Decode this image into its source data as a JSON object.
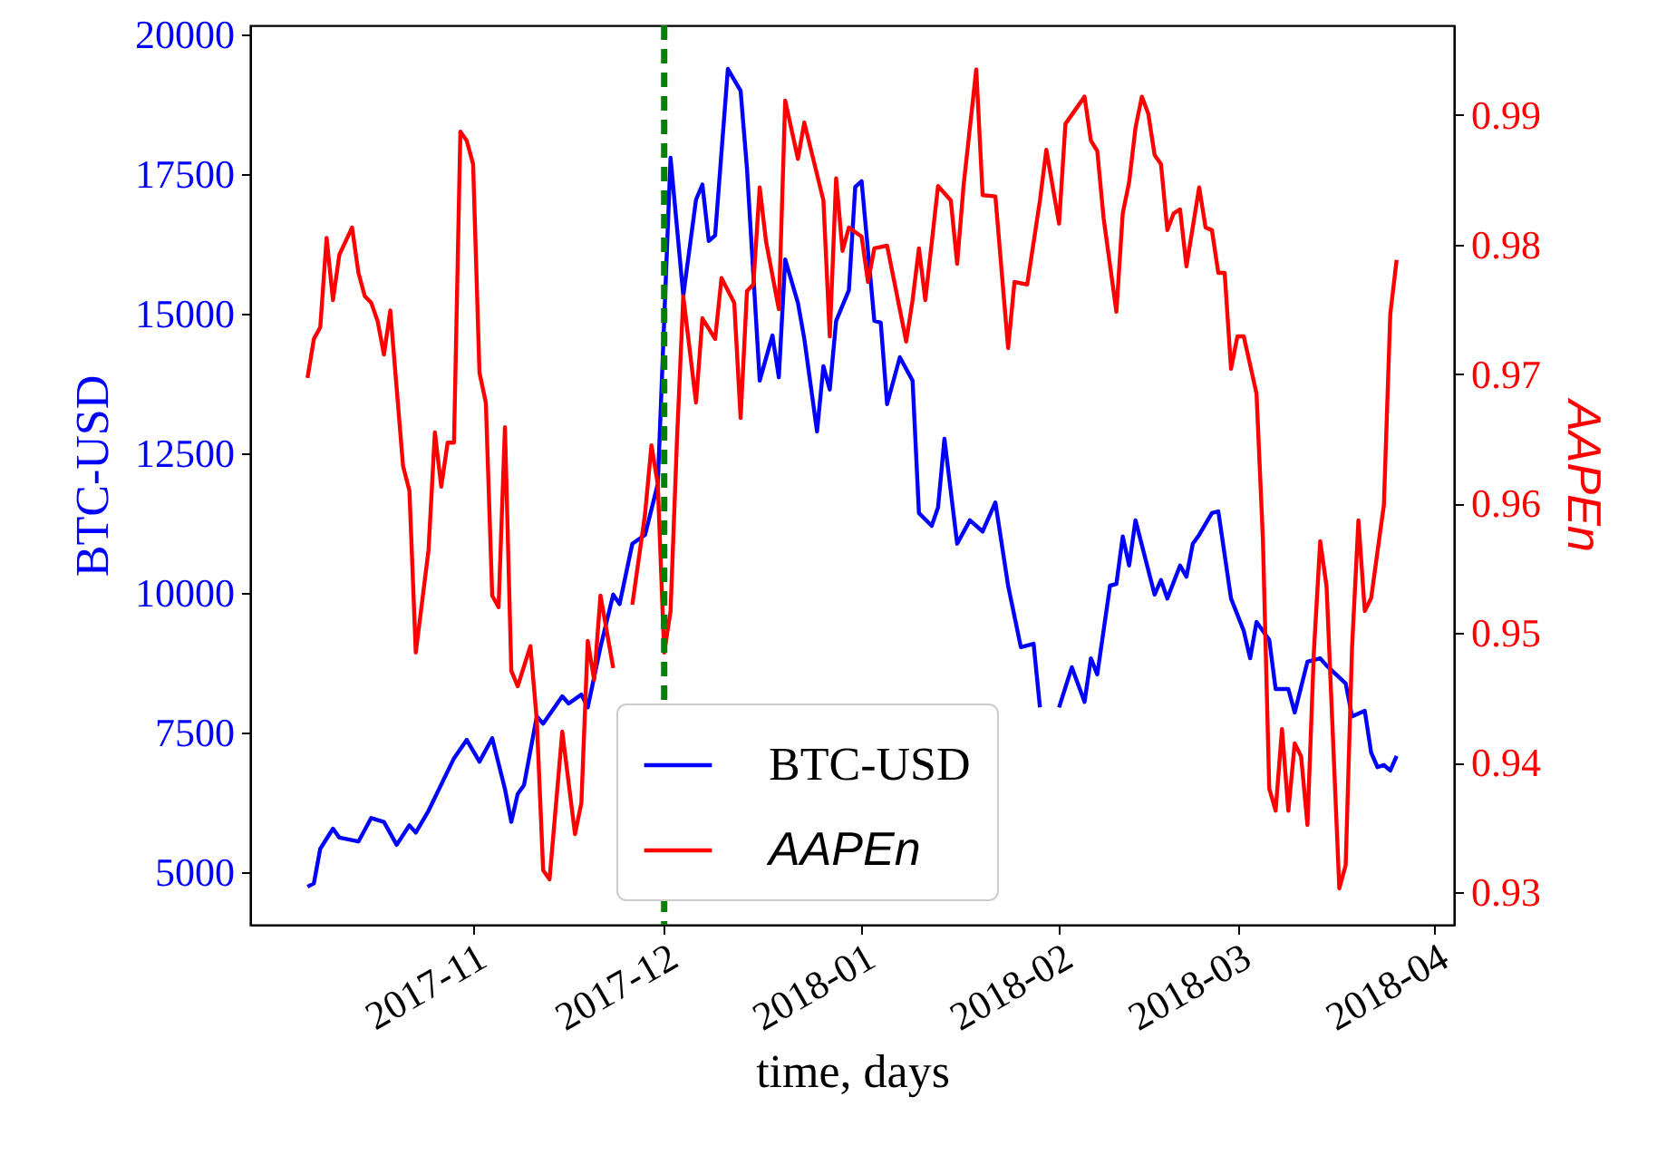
{
  "chart_data": {
    "type": "line",
    "xlabel": "time, days",
    "ylabel": "BTC-USD",
    "y2label": "AAPEn",
    "xlim": [
      "2017-09-27",
      "2018-04-04"
    ],
    "xticks": [
      {
        "value": "2017-11-01",
        "label": "2017-11"
      },
      {
        "value": "2017-12-01",
        "label": "2017-12"
      },
      {
        "value": "2018-01-01",
        "label": "2018-01"
      },
      {
        "value": "2018-02-01",
        "label": "2018-02"
      },
      {
        "value": "2018-03-01",
        "label": "2018-03"
      },
      {
        "value": "2018-04-01",
        "label": "2018-04"
      }
    ],
    "ylim": [
      4060,
      20160
    ],
    "yticks": [
      5000,
      7500,
      10000,
      12500,
      15000,
      17500,
      20000
    ],
    "y2lim": [
      0.9275,
      0.9969
    ],
    "y2ticks": [
      0.93,
      0.94,
      0.95,
      0.96,
      0.97,
      0.98,
      0.99
    ],
    "legend": "bottom",
    "ref_lines": [
      {
        "axis": "x",
        "value": "2017-12-01",
        "color": "#008000",
        "line_style": "dashed"
      }
    ],
    "series": [
      {
        "name": "BTC-USD",
        "color": "#0000ff",
        "x": [
          "2017-10-06",
          "2017-10-07",
          "2017-10-08",
          "2017-10-10",
          "2017-10-11",
          "2017-10-14",
          "2017-10-16",
          "2017-10-18",
          "2017-10-20",
          "2017-10-22",
          "2017-10-23",
          "2017-10-25",
          "2017-10-29",
          "2017-10-31",
          "2017-11-02",
          "2017-11-04",
          "2017-11-06",
          "2017-11-07",
          "2017-11-08",
          "2017-11-09",
          "2017-11-11",
          "2017-11-12",
          "2017-11-15",
          "2017-11-16",
          "2017-11-18",
          "2017-11-19",
          "2017-11-21",
          "2017-11-23",
          "2017-11-24",
          "2017-11-26",
          "2017-11-28",
          "2017-11-30",
          "2017-12-02",
          "2017-12-04",
          "2017-12-06",
          "2017-12-07",
          "2017-12-08",
          "2017-12-09",
          "2017-12-11",
          "2017-12-13",
          "2017-12-14",
          "2017-12-16",
          "2017-12-18",
          "2017-12-19",
          "2017-12-20",
          "2017-12-22",
          "2017-12-23",
          "2017-12-25",
          "2017-12-26",
          "2017-12-27",
          "2017-12-28",
          "2017-12-30",
          "2017-12-31",
          "2018-01-01",
          "2018-01-03",
          "2018-01-04",
          "2018-01-05",
          "2018-01-07",
          "2018-01-09",
          "2018-01-10",
          "2018-01-12",
          "2018-01-13",
          "2018-01-14",
          "2018-01-16",
          "2018-01-18",
          "2018-01-20",
          "2018-01-22",
          "2018-01-24",
          "2018-01-26",
          "2018-01-28",
          "2018-01-29",
          "2018-01-31",
          "2018-02-01",
          "2018-02-03",
          "2018-02-05",
          "2018-02-06",
          "2018-02-07",
          "2018-02-09",
          "2018-02-10",
          "2018-02-11",
          "2018-02-12",
          "2018-02-13",
          "2018-02-16",
          "2018-02-17",
          "2018-02-18",
          "2018-02-20",
          "2018-02-21",
          "2018-02-22",
          "2018-02-23",
          "2018-02-25",
          "2018-02-26",
          "2018-02-28",
          "2018-03-02",
          "2018-03-03",
          "2018-03-04",
          "2018-03-06",
          "2018-03-07",
          "2018-03-09",
          "2018-03-10",
          "2018-03-12",
          "2018-03-14",
          "2018-03-15",
          "2018-03-18",
          "2018-03-19",
          "2018-03-21",
          "2018-03-22",
          "2018-03-23",
          "2018-03-24",
          "2018-03-25",
          "2018-03-26"
        ],
        "values": [
          4740,
          4800,
          5420,
          5780,
          5620,
          5550,
          5970,
          5900,
          5490,
          5840,
          5710,
          6100,
          7040,
          7370,
          6980,
          7400,
          6490,
          5900,
          6400,
          6560,
          7790,
          7660,
          8150,
          8020,
          8180,
          7950,
          9030,
          9970,
          9800,
          10880,
          11040,
          11950,
          17790,
          15320,
          17040,
          17310,
          16300,
          16400,
          19380,
          18990,
          17600,
          13800,
          14610,
          13860,
          15970,
          15190,
          14550,
          12890,
          14060,
          13640,
          14870,
          15420,
          17270,
          17370,
          14870,
          14840,
          13380,
          14220,
          13800,
          11430,
          11200,
          11530,
          12760,
          10880,
          11300,
          11100,
          11620,
          10130,
          9030,
          9090,
          7950,
          null,
          7950,
          8670,
          8050,
          8830,
          8540,
          10130,
          10160,
          11010,
          10490,
          11300,
          9970,
          10230,
          9900,
          10490,
          10290,
          10880,
          11040,
          11430,
          11460,
          9900,
          9320,
          8830,
          9480,
          9160,
          8280,
          8280,
          7860,
          8770,
          8830,
          8700,
          8380,
          7790,
          7890,
          7140,
          6880,
          6920,
          6820,
          7080
        ]
      },
      {
        "name": "AAPEn",
        "color": "#ff0000",
        "axis": "y2",
        "x": [
          "2017-10-06",
          "2017-10-07",
          "2017-10-08",
          "2017-10-09",
          "2017-10-10",
          "2017-10-11",
          "2017-10-13",
          "2017-10-14",
          "2017-10-15",
          "2017-10-16",
          "2017-10-17",
          "2017-10-18",
          "2017-10-19",
          "2017-10-21",
          "2017-10-22",
          "2017-10-23",
          "2017-10-25",
          "2017-10-26",
          "2017-10-27",
          "2017-10-28",
          "2017-10-29",
          "2017-10-30",
          "2017-10-31",
          "2017-11-01",
          "2017-11-02",
          "2017-11-03",
          "2017-11-04",
          "2017-11-05",
          "2017-11-06",
          "2017-11-07",
          "2017-11-08",
          "2017-11-10",
          "2017-11-11",
          "2017-11-12",
          "2017-11-13",
          "2017-11-15",
          "2017-11-17",
          "2017-11-18",
          "2017-11-19",
          "2017-11-20",
          "2017-11-21",
          "2017-11-23",
          "2017-11-25",
          "2017-11-26",
          "2017-11-28",
          "2017-11-29",
          "2017-11-30",
          "2017-12-01",
          "2017-12-02",
          "2017-12-03",
          "2017-12-04",
          "2017-12-06",
          "2017-12-07",
          "2017-12-09",
          "2017-12-10",
          "2017-12-12",
          "2017-12-13",
          "2017-12-14",
          "2017-12-15",
          "2017-12-16",
          "2017-12-17",
          "2017-12-19",
          "2017-12-20",
          "2017-12-22",
          "2017-12-23",
          "2017-12-26",
          "2017-12-27",
          "2017-12-28",
          "2017-12-29",
          "2017-12-30",
          "2018-01-01",
          "2018-01-02",
          "2018-01-03",
          "2018-01-05",
          "2018-01-08",
          "2018-01-09",
          "2018-01-10",
          "2018-01-11",
          "2018-01-13",
          "2018-01-15",
          "2018-01-16",
          "2018-01-17",
          "2018-01-19",
          "2018-01-20",
          "2018-01-22",
          "2018-01-24",
          "2018-01-25",
          "2018-01-27",
          "2018-01-29",
          "2018-01-30",
          "2018-02-01",
          "2018-02-02",
          "2018-02-05",
          "2018-02-06",
          "2018-02-07",
          "2018-02-08",
          "2018-02-10",
          "2018-02-11",
          "2018-02-12",
          "2018-02-13",
          "2018-02-14",
          "2018-02-15",
          "2018-02-16",
          "2018-02-17",
          "2018-02-18",
          "2018-02-19",
          "2018-02-20",
          "2018-02-21",
          "2018-02-23",
          "2018-02-24",
          "2018-02-25",
          "2018-02-26",
          "2018-02-27",
          "2018-02-28",
          "2018-03-01",
          "2018-03-02",
          "2018-03-04",
          "2018-03-05",
          "2018-03-06",
          "2018-03-07",
          "2018-03-08",
          "2018-03-09",
          "2018-03-10",
          "2018-03-11",
          "2018-03-12",
          "2018-03-13",
          "2018-03-14",
          "2018-03-15",
          "2018-03-17",
          "2018-03-18",
          "2018-03-19",
          "2018-03-20",
          "2018-03-21",
          "2018-03-22",
          "2018-03-24",
          "2018-03-25",
          "2018-03-26"
        ],
        "values": [
          0.9697,
          0.9727,
          0.9736,
          0.9805,
          0.9757,
          0.9792,
          0.9813,
          0.9778,
          0.976,
          0.9755,
          0.9741,
          0.9715,
          0.9749,
          0.9629,
          0.961,
          0.9485,
          0.9564,
          0.9655,
          0.9613,
          0.9647,
          0.9647,
          0.9887,
          0.988,
          0.9862,
          0.9701,
          0.9678,
          0.9529,
          0.952,
          0.9659,
          0.9471,
          0.9459,
          0.949,
          0.9433,
          0.9317,
          0.931,
          0.9424,
          0.9345,
          0.9369,
          0.9494,
          0.9464,
          0.9529,
          0.9473,
          null,
          0.9522,
          0.9592,
          0.9645,
          0.9615,
          0.9485,
          0.9517,
          0.9648,
          0.976,
          0.9678,
          0.9743,
          0.9727,
          0.9774,
          0.9755,
          0.9666,
          0.9764,
          0.9769,
          0.9844,
          0.9802,
          0.975,
          0.9911,
          0.9866,
          0.9894,
          0.9834,
          0.9729,
          0.9851,
          0.9795,
          0.9813,
          0.9806,
          0.9771,
          0.9797,
          0.9799,
          0.9725,
          0.9757,
          0.9797,
          0.9757,
          0.9845,
          0.9834,
          0.9785,
          0.9845,
          0.9935,
          0.9838,
          0.9837,
          0.972,
          0.9771,
          0.9769,
          0.9834,
          0.9873,
          0.9816,
          0.9893,
          0.9914,
          0.988,
          0.9872,
          0.982,
          0.9748,
          0.9824,
          0.9848,
          0.989,
          0.9914,
          0.9901,
          0.9869,
          0.9862,
          0.9811,
          0.9824,
          0.9827,
          0.9783,
          0.9844,
          0.9813,
          0.9811,
          0.9778,
          0.9778,
          0.9704,
          0.9729,
          0.9729,
          0.9685,
          0.9573,
          0.938,
          0.9363,
          0.9426,
          0.9363,
          0.9415,
          0.9405,
          0.9352,
          0.9485,
          0.9571,
          0.9536,
          0.9303,
          0.9321,
          0.9489,
          0.9587,
          0.9517,
          0.9527,
          0.9599,
          0.9746,
          0.9788
        ]
      }
    ]
  }
}
